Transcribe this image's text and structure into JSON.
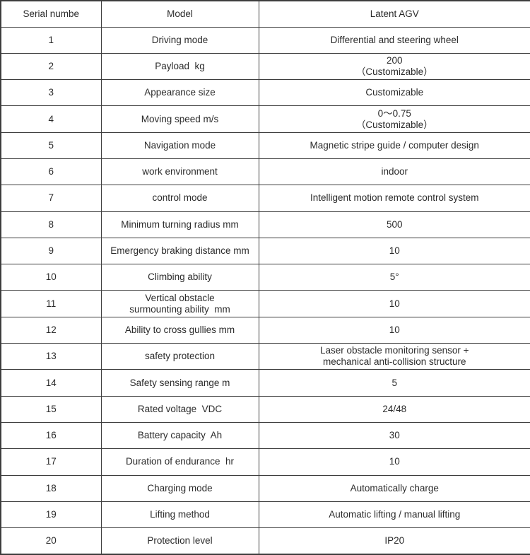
{
  "table": {
    "header": {
      "serial": "Serial numbe",
      "model": "Model",
      "value": "Latent AGV"
    },
    "rows": [
      {
        "serial": "1",
        "model": "Driving mode",
        "value": "Differential and steering wheel"
      },
      {
        "serial": "2",
        "model": "Payload  kg",
        "value": "200\n（Customizable）"
      },
      {
        "serial": "3",
        "model": "Appearance size",
        "value": "Customizable"
      },
      {
        "serial": "4",
        "model": "Moving speed m/s",
        "value": "0～0.75\n（Customizable）"
      },
      {
        "serial": "5",
        "model": "Navigation mode",
        "value": "Magnetic stripe guide / computer design"
      },
      {
        "serial": "6",
        "model": "work environment",
        "value": "indoor"
      },
      {
        "serial": "7",
        "model": "control mode",
        "value": "Intelligent motion remote control system"
      },
      {
        "serial": "8",
        "model": "Minimum turning radius mm",
        "value": "500"
      },
      {
        "serial": "9",
        "model": "Emergency braking distance mm",
        "value": "10"
      },
      {
        "serial": "10",
        "model": "Climbing ability",
        "value": "5°"
      },
      {
        "serial": "11",
        "model": "Vertical obstacle\nsurmounting ability  mm",
        "value": "10"
      },
      {
        "serial": "12",
        "model": "Ability to cross gullies mm",
        "value": "10"
      },
      {
        "serial": "13",
        "model": "safety protection",
        "value": "Laser obstacle monitoring sensor +\nmechanical anti-collision structure"
      },
      {
        "serial": "14",
        "model": "Safety sensing range m",
        "value": "5"
      },
      {
        "serial": "15",
        "model": "Rated voltage  VDC",
        "value": "24/48"
      },
      {
        "serial": "16",
        "model": "Battery capacity  Ah",
        "value": "30"
      },
      {
        "serial": "17",
        "model": "Duration of endurance  hr",
        "value": "10"
      },
      {
        "serial": "18",
        "model": "Charging mode",
        "value": "Automatically charge"
      },
      {
        "serial": "19",
        "model": "Lifting method",
        "value": "Automatic lifting / manual lifting"
      },
      {
        "serial": "20",
        "model": "Protection level",
        "value": "IP20"
      }
    ]
  }
}
